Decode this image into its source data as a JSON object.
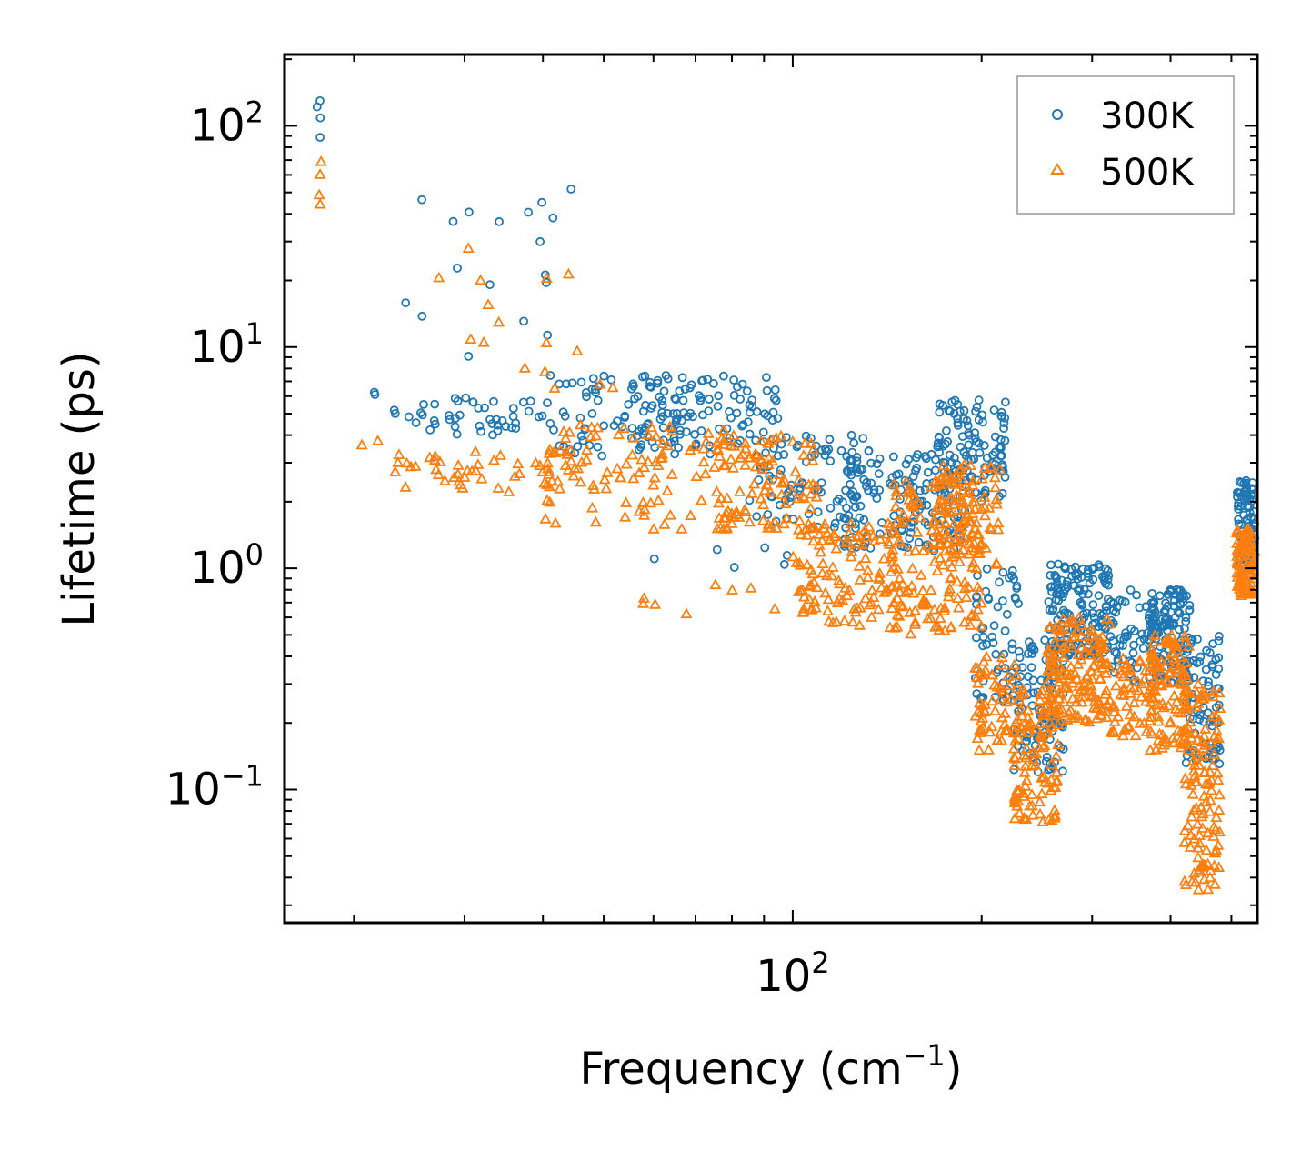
{
  "chart_data": {
    "type": "scatter",
    "title": "",
    "xlabel": "Frequency (cm",
    "xlabel_sup": "−1",
    "xlabel_suffix": ")",
    "ylabel": "Lifetime (ps)",
    "xscale": "log",
    "yscale": "log",
    "xlim": [
      15.5,
      550
    ],
    "ylim": [
      0.025,
      210
    ],
    "x_ticks": [
      {
        "value": 100,
        "base": "10",
        "exp": "2"
      }
    ],
    "y_ticks": [
      {
        "value": 0.1,
        "base": "10",
        "exp": "−1"
      },
      {
        "value": 1,
        "base": "10",
        "exp": "0"
      },
      {
        "value": 10,
        "base": "10",
        "exp": "1"
      },
      {
        "value": 100,
        "base": "10",
        "exp": "2"
      }
    ],
    "legend": {
      "position": "top-right"
    },
    "series": [
      {
        "name": "300K",
        "marker": "circle",
        "color": "#1f77b4",
        "clusters": [
          {
            "x": [
              17.4,
              17.8
            ],
            "y": [
              75,
              130
            ],
            "n": 4
          },
          {
            "x": [
              20.5,
              22
            ],
            "y": [
              6.0,
              6.3
            ],
            "n": 2
          },
          {
            "x": [
              23,
              40
            ],
            "y": [
              4.0,
              6.0
            ],
            "n": 45
          },
          {
            "x": [
              24,
              52
            ],
            "y": [
              9,
              52
            ],
            "n": 18
          },
          {
            "x": [
              40,
              75
            ],
            "y": [
              3.2,
              7.5
            ],
            "n": 80
          },
          {
            "x": [
              55,
              95
            ],
            "y": [
              3.5,
              7.5
            ],
            "n": 90
          },
          {
            "x": [
              60,
              100
            ],
            "y": [
              1.0,
              1.3
            ],
            "n": 6
          },
          {
            "x": [
              85,
              130
            ],
            "y": [
              1.5,
              4.0
            ],
            "n": 90
          },
          {
            "x": [
              120,
              190
            ],
            "y": [
              1.2,
              3.5
            ],
            "n": 150
          },
          {
            "x": [
              170,
              220
            ],
            "y": [
              2.0,
              6.0
            ],
            "n": 110
          },
          {
            "x": [
              195,
              230
            ],
            "y": [
              0.25,
              1.0
            ],
            "n": 60
          },
          {
            "x": [
              225,
              270
            ],
            "y": [
              0.12,
              0.5
            ],
            "n": 100
          },
          {
            "x": [
              255,
              320
            ],
            "y": [
              0.4,
              1.05
            ],
            "n": 160
          },
          {
            "x": [
              320,
              380
            ],
            "y": [
              0.3,
              0.8
            ],
            "n": 60
          },
          {
            "x": [
              370,
              430
            ],
            "y": [
              0.3,
              0.8
            ],
            "n": 120
          },
          {
            "x": [
              420,
              480
            ],
            "y": [
              0.13,
              0.5
            ],
            "n": 80
          },
          {
            "x": [
              510,
              545
            ],
            "y": [
              1.0,
              2.5
            ],
            "n": 90
          }
        ]
      },
      {
        "name": "500K",
        "marker": "triangle",
        "color": "#ff7f0e",
        "clusters": [
          {
            "x": [
              17.4,
              17.8
            ],
            "y": [
              42,
              75
            ],
            "n": 4
          },
          {
            "x": [
              20.5,
              22
            ],
            "y": [
              3.5,
              3.8
            ],
            "n": 2
          },
          {
            "x": [
              23,
              45
            ],
            "y": [
              2.2,
              3.4
            ],
            "n": 50
          },
          {
            "x": [
              24,
              52
            ],
            "y": [
              6,
              30
            ],
            "n": 16
          },
          {
            "x": [
              40,
              80
            ],
            "y": [
              1.5,
              4.5
            ],
            "n": 100
          },
          {
            "x": [
              55,
              95
            ],
            "y": [
              0.6,
              0.85
            ],
            "n": 8
          },
          {
            "x": [
              75,
              110
            ],
            "y": [
              1.5,
              4.0
            ],
            "n": 90
          },
          {
            "x": [
              100,
              150
            ],
            "y": [
              0.55,
              1.6
            ],
            "n": 120
          },
          {
            "x": [
              140,
              200
            ],
            "y": [
              0.5,
              2.5
            ],
            "n": 160
          },
          {
            "x": [
              170,
              215
            ],
            "y": [
              1.0,
              3.0
            ],
            "n": 80
          },
          {
            "x": [
              195,
              230
            ],
            "y": [
              0.15,
              0.4
            ],
            "n": 60
          },
          {
            "x": [
              225,
              265
            ],
            "y": [
              0.07,
              0.3
            ],
            "n": 110
          },
          {
            "x": [
              255,
              320
            ],
            "y": [
              0.2,
              0.6
            ],
            "n": 150
          },
          {
            "x": [
              320,
              380
            ],
            "y": [
              0.17,
              0.4
            ],
            "n": 60
          },
          {
            "x": [
              370,
              430
            ],
            "y": [
              0.15,
              0.5
            ],
            "n": 110
          },
          {
            "x": [
              420,
              480
            ],
            "y": [
              0.035,
              0.3
            ],
            "n": 120
          },
          {
            "x": [
              510,
              545
            ],
            "y": [
              0.75,
              1.5
            ],
            "n": 90
          }
        ]
      }
    ]
  }
}
